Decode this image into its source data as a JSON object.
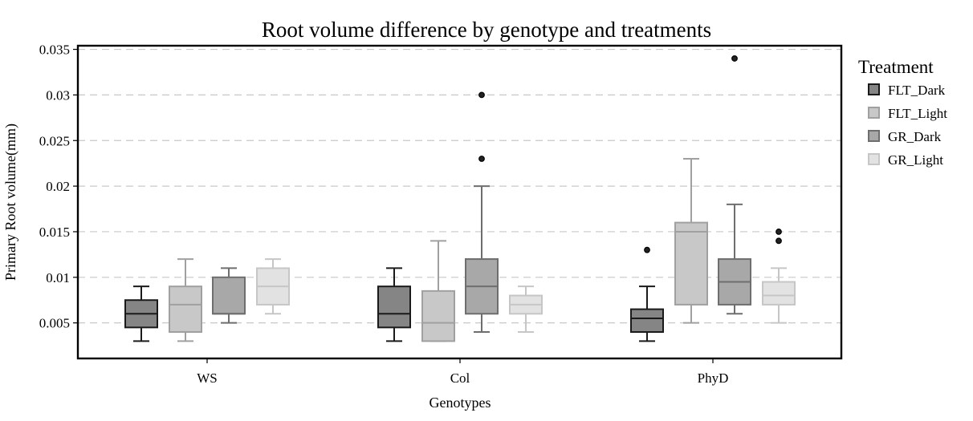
{
  "chart_data": {
    "type": "box",
    "title": "Root volume difference by genotype and treatments",
    "xlabel": "Genotypes",
    "ylabel": "Primary Root volume(mm)",
    "ylim": [
      0.0011,
      0.0354
    ],
    "yticks": [
      0.005,
      0.01,
      0.015,
      0.02,
      0.025,
      0.03,
      0.035
    ],
    "ytick_labels": [
      "0.005",
      "0.01",
      "0.015",
      "0.02",
      "0.025",
      "0.03",
      "0.035"
    ],
    "categories": [
      "WS",
      "Col",
      "PhyD"
    ],
    "grid": "horizontal dashed",
    "legend": {
      "title": "Treatment",
      "placement": "right"
    },
    "series": [
      {
        "name": "FLT_Dark",
        "fill": "#858585",
        "stroke": "#1a1a1a",
        "boxes": [
          {
            "min": 0.003,
            "q1": 0.0045,
            "median": 0.006,
            "q3": 0.0075,
            "max": 0.009,
            "outliers": []
          },
          {
            "min": 0.003,
            "q1": 0.0045,
            "median": 0.006,
            "q3": 0.009,
            "max": 0.011,
            "outliers": []
          },
          {
            "min": 0.003,
            "q1": 0.004,
            "median": 0.0055,
            "q3": 0.0065,
            "max": 0.009,
            "outliers": [
              0.013
            ]
          }
        ]
      },
      {
        "name": "FLT_Light",
        "fill": "#c8c8c8",
        "stroke": "#a0a0a0",
        "boxes": [
          {
            "min": 0.003,
            "q1": 0.004,
            "median": 0.007,
            "q3": 0.009,
            "max": 0.012,
            "outliers": []
          },
          {
            "min": 0.003,
            "q1": 0.003,
            "median": 0.005,
            "q3": 0.0085,
            "max": 0.014,
            "outliers": []
          },
          {
            "min": 0.005,
            "q1": 0.007,
            "median": 0.015,
            "q3": 0.016,
            "max": 0.023,
            "outliers": []
          }
        ]
      },
      {
        "name": "GR_Dark",
        "fill": "#a8a8a8",
        "stroke": "#6e6e6e",
        "boxes": [
          {
            "min": 0.005,
            "q1": 0.006,
            "median": 0.006,
            "q3": 0.01,
            "max": 0.011,
            "outliers": []
          },
          {
            "min": 0.004,
            "q1": 0.006,
            "median": 0.009,
            "q3": 0.012,
            "max": 0.02,
            "outliers": [
              0.023,
              0.03
            ]
          },
          {
            "min": 0.006,
            "q1": 0.007,
            "median": 0.0095,
            "q3": 0.012,
            "max": 0.018,
            "outliers": [
              0.034
            ]
          }
        ]
      },
      {
        "name": "GR_Light",
        "fill": "#e2e2e2",
        "stroke": "#c6c6c6",
        "boxes": [
          {
            "min": 0.006,
            "q1": 0.007,
            "median": 0.009,
            "q3": 0.011,
            "max": 0.012,
            "outliers": []
          },
          {
            "min": 0.004,
            "q1": 0.006,
            "median": 0.007,
            "q3": 0.008,
            "max": 0.009,
            "outliers": []
          },
          {
            "min": 0.005,
            "q1": 0.007,
            "median": 0.008,
            "q3": 0.0095,
            "max": 0.011,
            "outliers": [
              0.014,
              0.015
            ]
          }
        ]
      }
    ]
  }
}
